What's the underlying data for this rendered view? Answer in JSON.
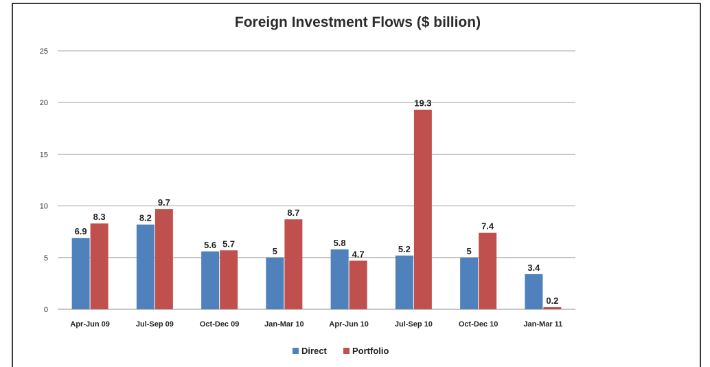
{
  "chart_data": {
    "type": "bar",
    "title": "Foreign Investment Flows ($ billion)",
    "xlabel": "",
    "ylabel": "",
    "categories": [
      "Apr-Jun 09",
      "Jul-Sep 09",
      "Oct-Dec 09",
      "Jan-Mar 10",
      "Apr-Jun 10",
      "Jul-Sep 10",
      "Oct-Dec 10",
      "Jan-Mar 11"
    ],
    "series": [
      {
        "name": "Direct",
        "color": "#4f81bd",
        "values": [
          6.9,
          8.2,
          5.6,
          5,
          5.8,
          5.2,
          5,
          3.4
        ]
      },
      {
        "name": "Portfolio",
        "color": "#c0504d",
        "values": [
          8.3,
          9.7,
          5.7,
          8.7,
          4.7,
          19.3,
          7.4,
          0.2
        ]
      }
    ],
    "ylim": [
      0,
      25
    ],
    "yticks": [
      0,
      5,
      10,
      15,
      20,
      25
    ],
    "grid": true,
    "legend_position": "bottom-center"
  }
}
